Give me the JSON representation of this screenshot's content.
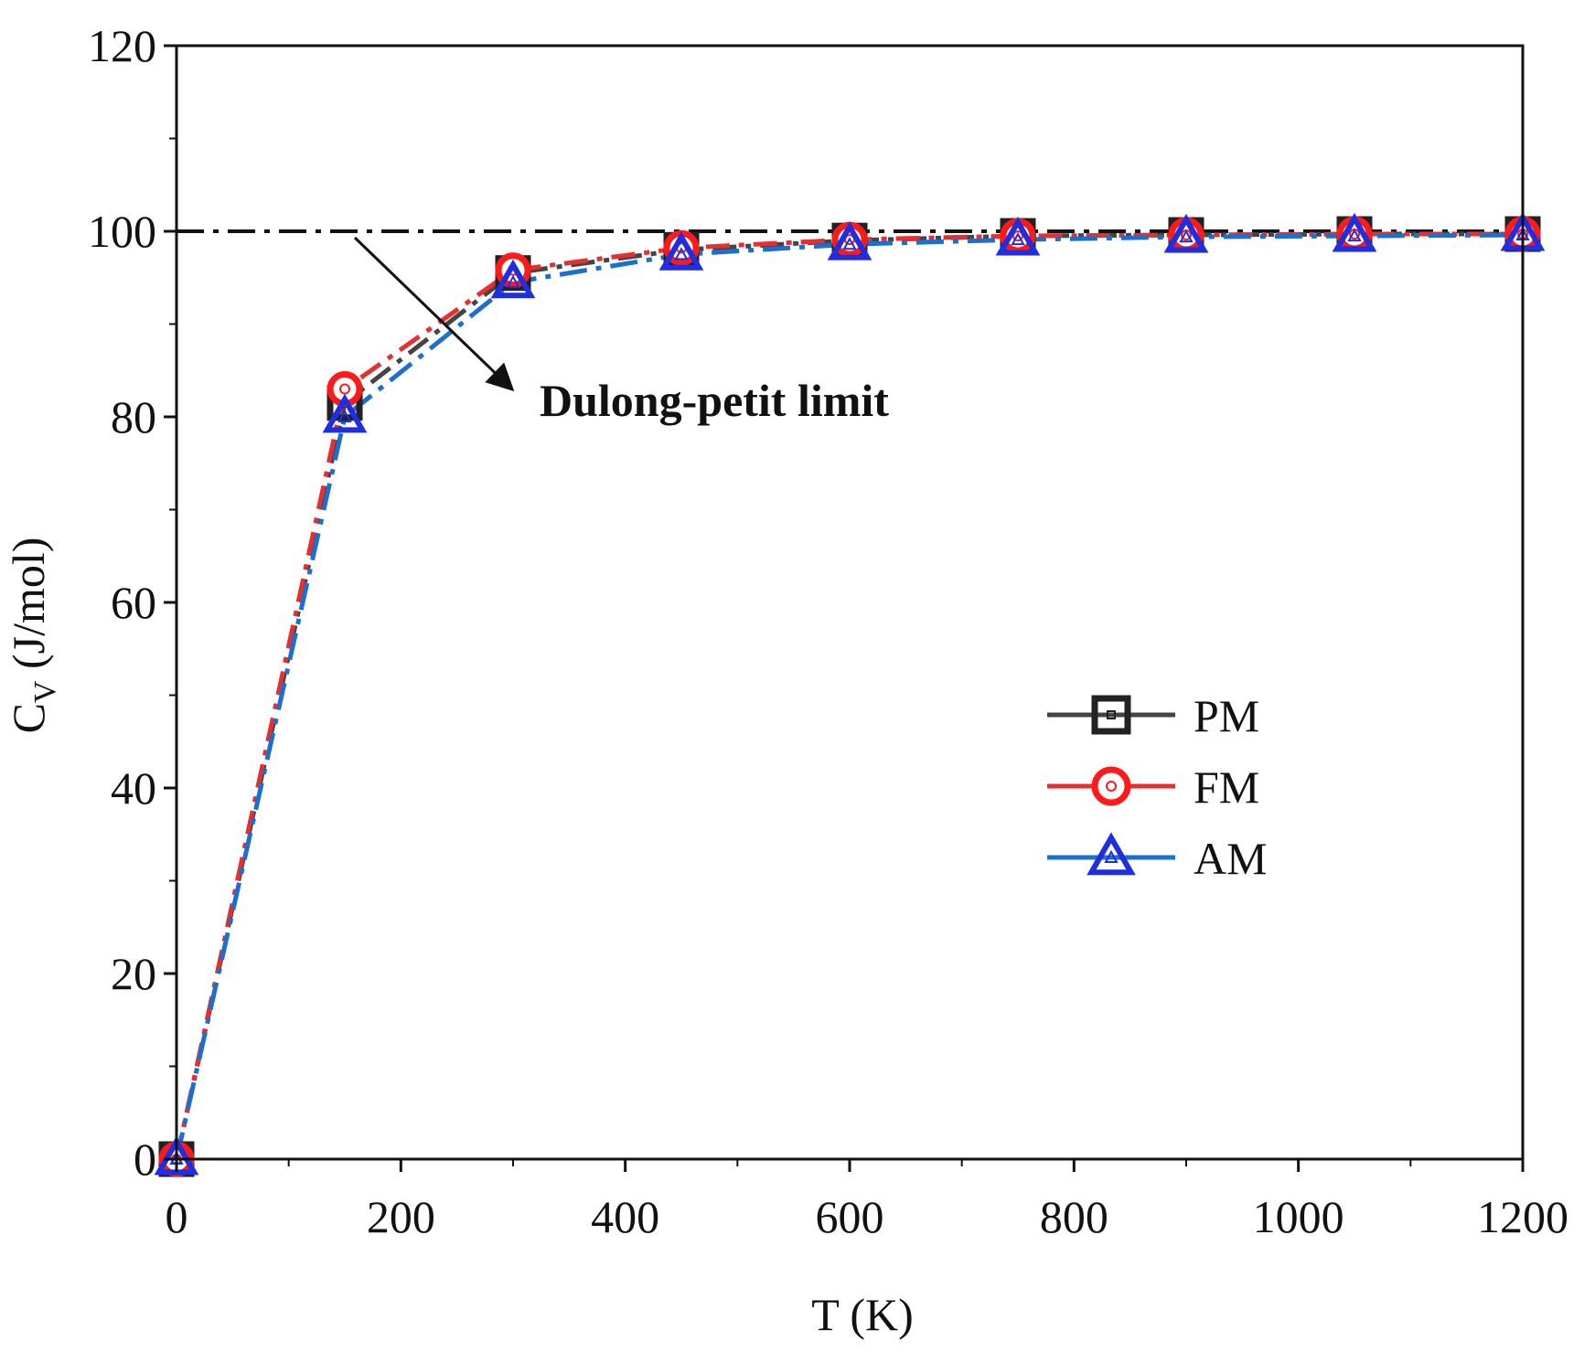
{
  "chart_data": {
    "type": "line",
    "title": "",
    "xlabel": "T (K)",
    "ylabel_main": "C",
    "ylabel_sub": "V",
    "ylabel_rest": " (J/mol)",
    "xlim": [
      0,
      1200
    ],
    "ylim": [
      0,
      120
    ],
    "xticks": [
      0,
      200,
      400,
      600,
      800,
      1000,
      1200
    ],
    "yticks": [
      0,
      20,
      40,
      60,
      80,
      100,
      120
    ],
    "x": [
      0,
      150,
      300,
      450,
      600,
      750,
      900,
      1050,
      1200
    ],
    "series": [
      {
        "name": "PM",
        "color": "#444444",
        "marker": "square",
        "values": [
          0,
          81.5,
          95.5,
          98.0,
          99.0,
          99.5,
          99.6,
          99.7,
          99.7
        ]
      },
      {
        "name": "FM",
        "color": "#e63030",
        "marker": "circle",
        "values": [
          0,
          83.0,
          95.8,
          98.2,
          99.1,
          99.5,
          99.6,
          99.7,
          99.7
        ]
      },
      {
        "name": "AM",
        "color": "#1a6fd0",
        "marker": "triangle",
        "values": [
          0,
          80.0,
          94.5,
          97.5,
          98.6,
          99.1,
          99.4,
          99.5,
          99.6
        ]
      }
    ],
    "reference_line": {
      "label": "Dulong-petit limit",
      "value": 100
    },
    "legend_position": "right-middle",
    "grid": false
  }
}
